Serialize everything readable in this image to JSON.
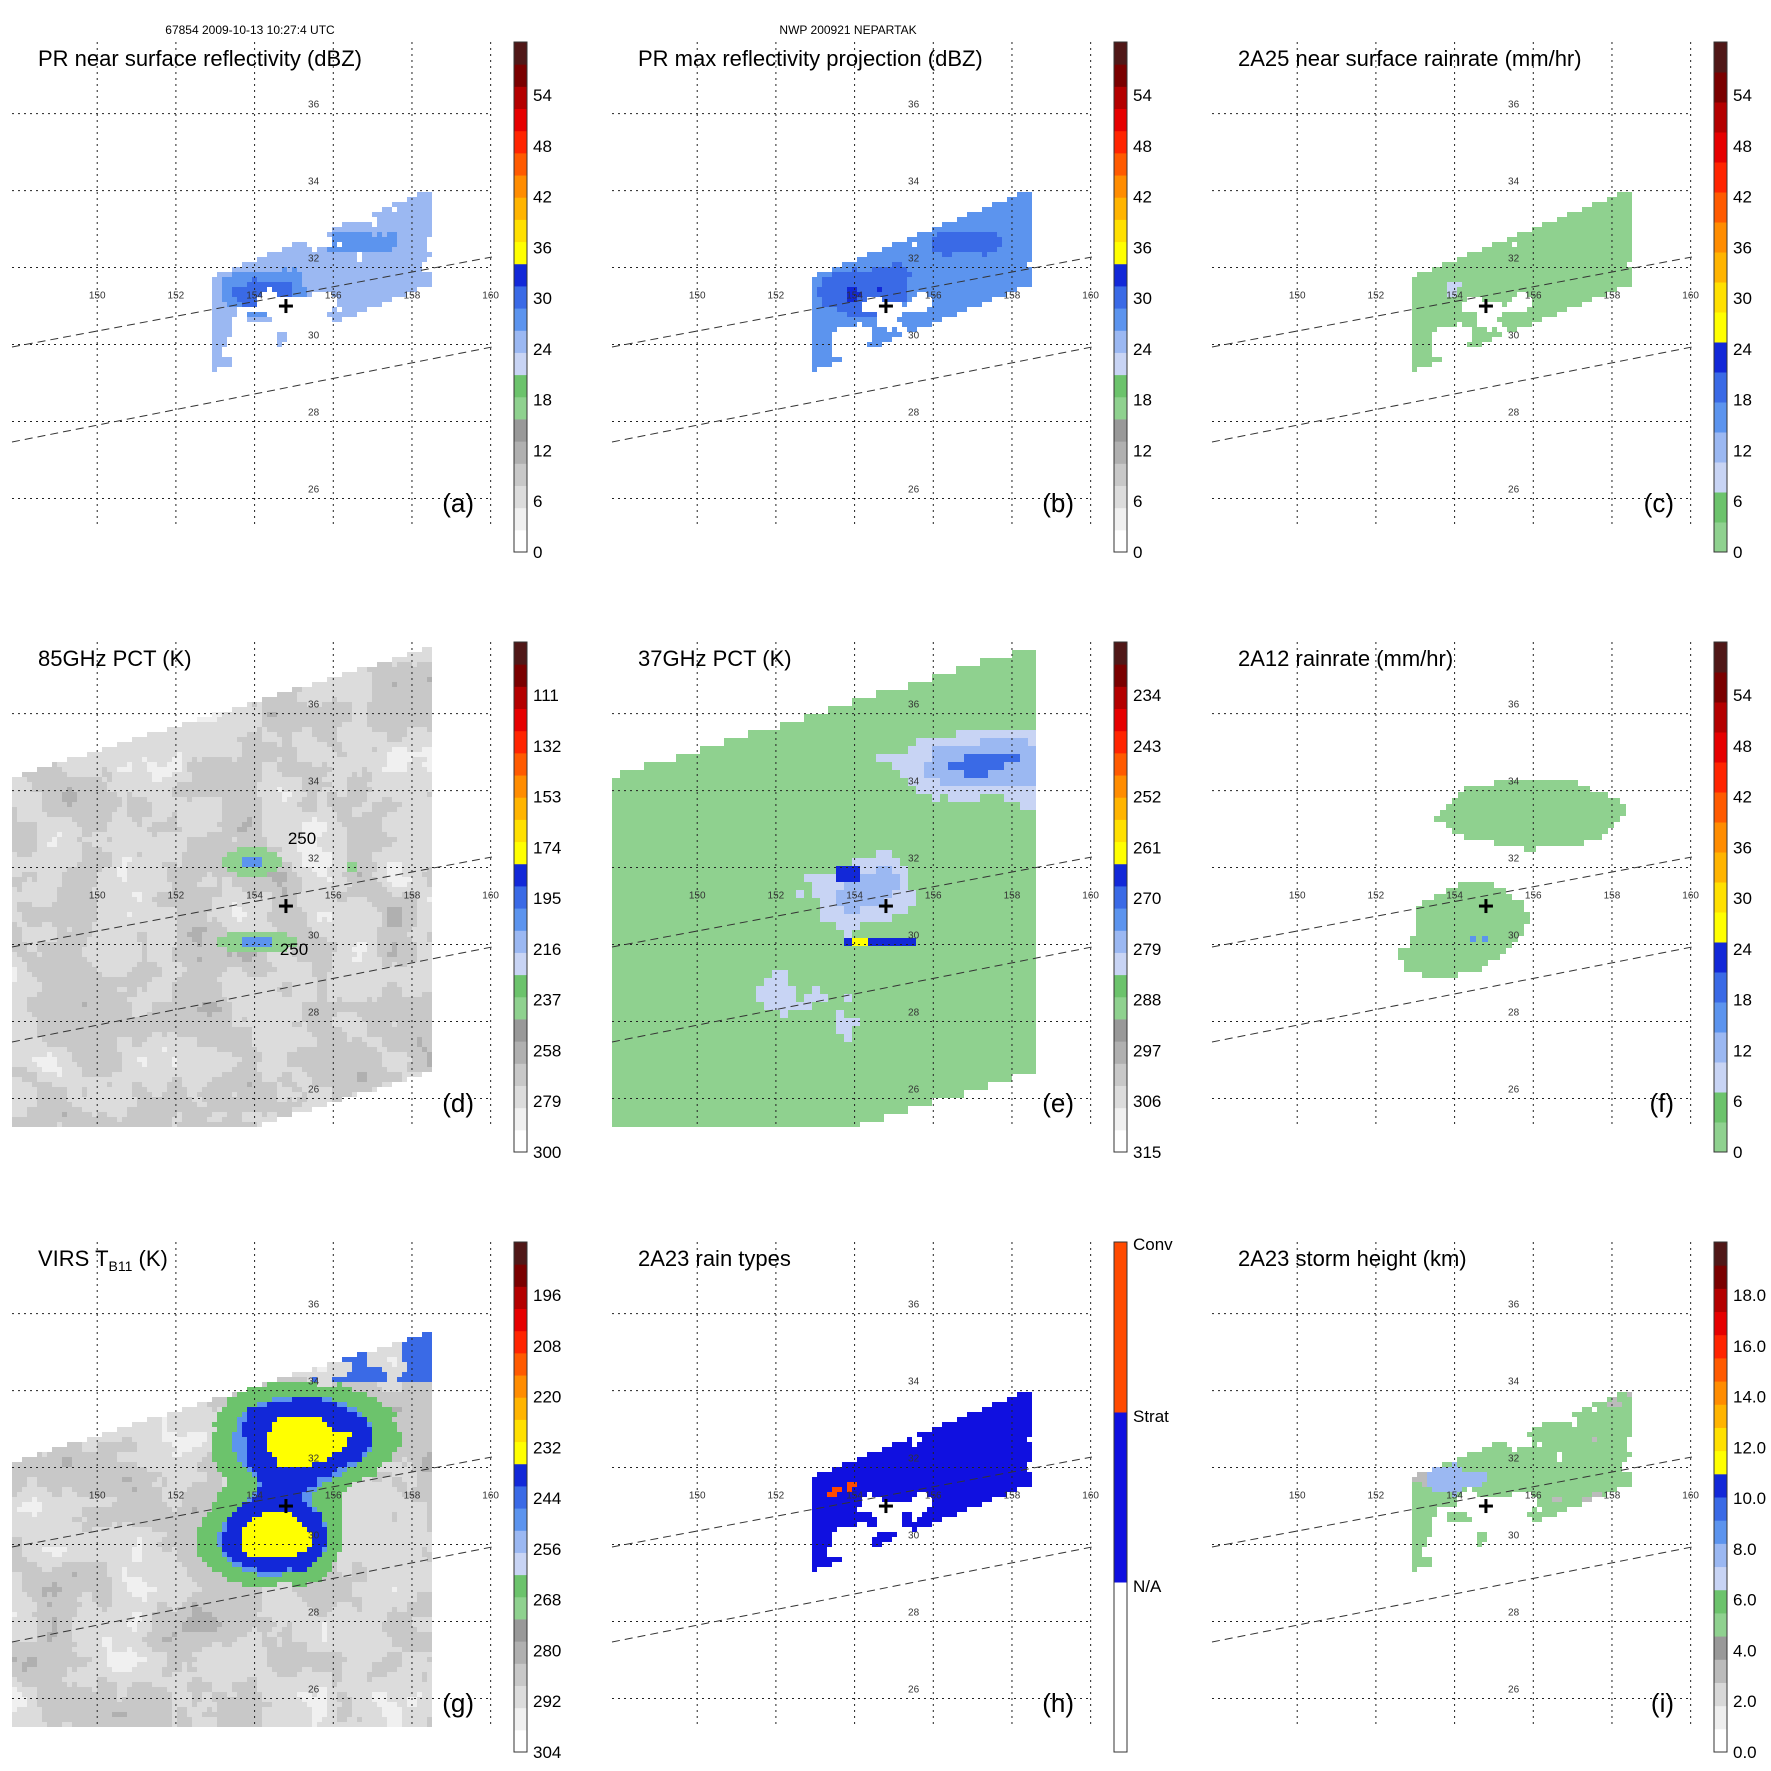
{
  "header": {
    "left": "67854 2009-10-13 10:27:4 UTC",
    "center": "NWP 200921 NEPARTAK"
  },
  "colors": {
    "dBZ": [
      "#ffffff",
      "#f0f0f0",
      "#dcdcdc",
      "#c8c8c8",
      "#b0b0b0",
      "#999999",
      "#8fd18f",
      "#6cc36c",
      "#c8d4f4",
      "#9bb8f2",
      "#5c94ee",
      "#3a6ae6",
      "#1228d8",
      "#ffff00",
      "#ffe000",
      "#ffb400",
      "#ff8c00",
      "#ff5a00",
      "#ff2400",
      "#e60000",
      "#b40000",
      "#7a0000",
      "#501818"
    ],
    "rain": [
      "#8fd18f",
      "#6cc36c",
      "#c8d4f4",
      "#9bb8f2",
      "#5c94ee",
      "#3a6ae6",
      "#1228d8",
      "#ffff00",
      "#ffe000",
      "#ffb400",
      "#ff8c00",
      "#ff5a00",
      "#ff2400",
      "#e60000",
      "#b40000",
      "#7a0000",
      "#501818"
    ],
    "pct": [
      "#ffffff",
      "#f0f0f0",
      "#dcdcdc",
      "#c8c8c8",
      "#b0b0b0",
      "#999999",
      "#8fd18f",
      "#6cc36c",
      "#c8d4f4",
      "#9bb8f2",
      "#5c94ee",
      "#3a6ae6",
      "#1228d8",
      "#ffff00",
      "#ffe000",
      "#ffb400",
      "#ff8c00",
      "#ff5a00",
      "#ff2400",
      "#e60000",
      "#b40000",
      "#7a0000",
      "#501818"
    ],
    "rtype": [
      "#ffffff",
      "#1010e0",
      "#ff4a00"
    ],
    "height": [
      "#ffffff",
      "#eeeeee",
      "#d8d8d8",
      "#bbbbbb",
      "#999999",
      "#8fd18f",
      "#6cc36c",
      "#c8d4f4",
      "#9bb8f2",
      "#5c94ee",
      "#3a6ae6",
      "#1228d8",
      "#ffff00",
      "#ffe000",
      "#ffb400",
      "#ff8c00",
      "#ff5a00",
      "#ff2400",
      "#e60000",
      "#b40000",
      "#7a0000",
      "#501818"
    ]
  },
  "chart_data": [
    {
      "id": "a",
      "type": "heatmap",
      "title": "PR near surface reflectivity (dBZ)",
      "panel_label": "(a)",
      "colorbar": {
        "ticks": [
          "54",
          "48",
          "42",
          "36",
          "30",
          "24",
          "18",
          "12",
          "6",
          "0"
        ],
        "scale": "dBZ"
      },
      "swath": "pr",
      "field": "pr_refl"
    },
    {
      "id": "b",
      "type": "heatmap",
      "title": "PR max reflectivity projection (dBZ)",
      "panel_label": "(b)",
      "colorbar": {
        "ticks": [
          "54",
          "48",
          "42",
          "36",
          "30",
          "24",
          "18",
          "12",
          "6",
          "0"
        ],
        "scale": "dBZ"
      },
      "swath": "pr",
      "field": "pr_max"
    },
    {
      "id": "c",
      "type": "heatmap",
      "title": "2A25 near surface rainrate (mm/hr)",
      "panel_label": "(c)",
      "colorbar": {
        "ticks": [
          "54",
          "48",
          "42",
          "36",
          "30",
          "24",
          "18",
          "12",
          "6",
          "0"
        ],
        "scale": "rain"
      },
      "swath": "pr",
      "field": "rain2a25"
    },
    {
      "id": "d",
      "type": "heatmap",
      "title": "85GHz PCT (K)",
      "panel_label": "(d)",
      "colorbar": {
        "ticks": [
          "111",
          "132",
          "153",
          "174",
          "195",
          "216",
          "237",
          "258",
          "279",
          "300"
        ],
        "scale": "pct"
      },
      "swath": "tmi",
      "field": "pct85",
      "contour_labels": [
        "250",
        "250"
      ]
    },
    {
      "id": "e",
      "type": "heatmap",
      "title": "37GHz PCT (K)",
      "panel_label": "(e)",
      "colorbar": {
        "ticks": [
          "234",
          "243",
          "252",
          "261",
          "270",
          "279",
          "288",
          "297",
          "306",
          "315"
        ],
        "scale": "pct"
      },
      "swath": "tmi",
      "field": "pct37"
    },
    {
      "id": "f",
      "type": "heatmap",
      "title": "2A12 rainrate (mm/hr)",
      "panel_label": "(f)",
      "colorbar": {
        "ticks": [
          "54",
          "48",
          "42",
          "36",
          "30",
          "24",
          "18",
          "12",
          "6",
          "0"
        ],
        "scale": "rain"
      },
      "swath": "tmi",
      "field": "rain2a12"
    },
    {
      "id": "g",
      "type": "heatmap",
      "title": "VIRS T",
      "title_sub": "B11",
      "title_suffix": " (K)",
      "panel_label": "(g)",
      "colorbar": {
        "ticks": [
          "196",
          "208",
          "220",
          "232",
          "244",
          "256",
          "268",
          "280",
          "292",
          "304"
        ],
        "scale": "pct"
      },
      "swath": "virs",
      "field": "virs"
    },
    {
      "id": "h",
      "type": "heatmap",
      "title": "2A23 rain types",
      "panel_label": "(h)",
      "colorbar": {
        "ticks": [
          "Conv",
          "Strat",
          "N/A"
        ],
        "scale": "rtype"
      },
      "swath": "pr",
      "field": "rtype"
    },
    {
      "id": "i",
      "type": "heatmap",
      "title": "2A23 storm height (km)",
      "panel_label": "(i)",
      "colorbar": {
        "ticks": [
          "18.0",
          "16.0",
          "14.0",
          "12.0",
          "10.0",
          "8.0",
          "6.0",
          "4.0",
          "2.0",
          "0.0"
        ],
        "scale": "height"
      },
      "swath": "pr",
      "field": "height"
    }
  ],
  "axes": {
    "lon_ticks": [
      "150",
      "152",
      "154",
      "156",
      "158",
      "160"
    ],
    "lat_ticks": [
      "36",
      "34",
      "32",
      "30",
      "28",
      "26"
    ],
    "lon_values": [
      150,
      152,
      154,
      156,
      158,
      160
    ],
    "lat_values": [
      36,
      34,
      32,
      30,
      28,
      26
    ],
    "lon_range": [
      148.8,
      161.0
    ],
    "lat_range": [
      25.0,
      37.6
    ],
    "center_marker": {
      "lon": 155.0,
      "lat": 31.0
    }
  }
}
